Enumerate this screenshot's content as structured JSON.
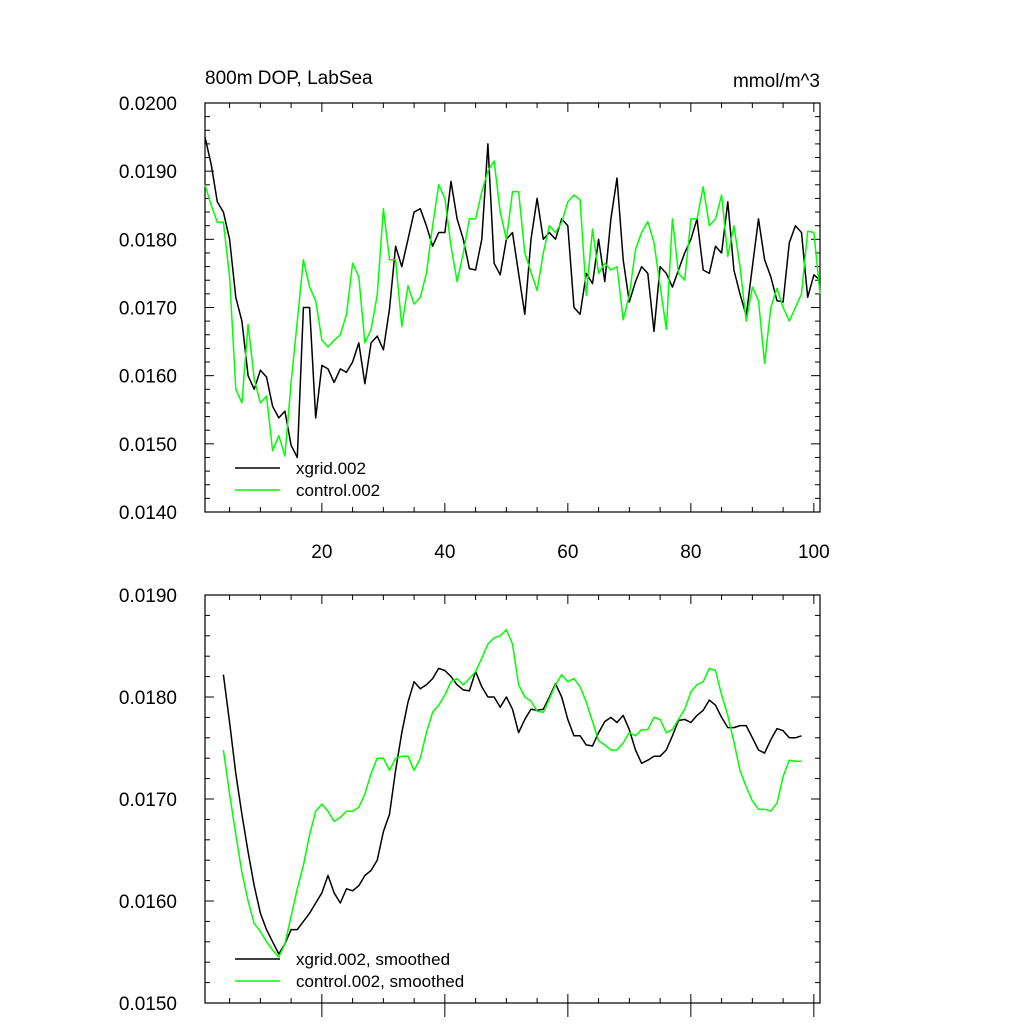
{
  "chart_data": [
    {
      "type": "line",
      "title": "800m DOP, LabSea",
      "units": "mmol/m^3",
      "xlabel": "",
      "ylabel": "",
      "xlim": [
        1,
        101
      ],
      "ylim": [
        0.014,
        0.02
      ],
      "yticks": [
        "0.0140",
        "0.0150",
        "0.0160",
        "0.0170",
        "0.0180",
        "0.0190",
        "0.0200"
      ],
      "xticks": [
        "20",
        "40",
        "60",
        "80",
        "100"
      ],
      "legend_position": "bottom-left",
      "grid": false,
      "series": [
        {
          "name": "xgrid.002",
          "color": "#000000",
          "x": [
            1,
            2,
            3,
            4,
            5,
            6,
            7,
            8,
            9,
            10,
            11,
            12,
            13,
            14,
            15,
            16,
            17,
            18,
            19,
            20,
            21,
            22,
            23,
            24,
            25,
            26,
            27,
            28,
            29,
            30,
            31,
            32,
            33,
            34,
            35,
            36,
            37,
            38,
            39,
            40,
            41,
            42,
            43,
            44,
            45,
            46,
            47,
            48,
            49,
            50,
            51,
            52,
            53,
            54,
            55,
            56,
            57,
            58,
            59,
            60,
            61,
            62,
            63,
            64,
            65,
            66,
            67,
            68,
            69,
            70,
            71,
            72,
            73,
            74,
            75,
            76,
            77,
            78,
            79,
            80,
            81,
            82,
            83,
            84,
            85,
            86,
            87,
            88,
            89,
            90,
            91,
            92,
            93,
            94,
            95,
            96,
            97,
            98,
            99,
            100,
            101
          ],
          "values": [
            0.0195,
            0.0191,
            0.01855,
            0.0184,
            0.018,
            0.01715,
            0.0168,
            0.016,
            0.0158,
            0.01608,
            0.01598,
            0.01555,
            0.01538,
            0.01548,
            0.01498,
            0.0148,
            0.017,
            0.017,
            0.01538,
            0.01615,
            0.0161,
            0.0159,
            0.0161,
            0.01605,
            0.0162,
            0.01648,
            0.01588,
            0.01648,
            0.01658,
            0.01638,
            0.01698,
            0.0179,
            0.0176,
            0.018,
            0.0184,
            0.01845,
            0.0182,
            0.0179,
            0.0181,
            0.0181,
            0.01885,
            0.0183,
            0.018,
            0.01757,
            0.01755,
            0.018,
            0.0194,
            0.01765,
            0.01748,
            0.018,
            0.0181,
            0.0175,
            0.0169,
            0.018,
            0.0186,
            0.018,
            0.0181,
            0.018,
            0.0183,
            0.0182,
            0.017,
            0.0169,
            0.0175,
            0.01735,
            0.018,
            0.01738,
            0.0183,
            0.0189,
            0.0177,
            0.01708,
            0.01738,
            0.0176,
            0.0175,
            0.01665,
            0.0176,
            0.0175,
            0.0173,
            0.01755,
            0.0178,
            0.018,
            0.0183,
            0.01755,
            0.0175,
            0.0179,
            0.0178,
            0.01855,
            0.01755,
            0.0172,
            0.01688,
            0.0176,
            0.0183,
            0.0177,
            0.01745,
            0.0171,
            0.01708,
            0.01795,
            0.0182,
            0.0181,
            0.01715,
            0.01748,
            0.0174
          ]
        },
        {
          "name": "control.002",
          "color": "#00ff00",
          "x": [
            1,
            2,
            3,
            4,
            5,
            6,
            7,
            8,
            9,
            10,
            11,
            12,
            13,
            14,
            15,
            16,
            17,
            18,
            19,
            20,
            21,
            22,
            23,
            24,
            25,
            26,
            27,
            28,
            29,
            30,
            31,
            32,
            33,
            34,
            35,
            36,
            37,
            38,
            39,
            40,
            41,
            42,
            43,
            44,
            45,
            46,
            47,
            48,
            49,
            50,
            51,
            52,
            53,
            54,
            55,
            56,
            57,
            58,
            59,
            60,
            61,
            62,
            63,
            64,
            65,
            66,
            67,
            68,
            69,
            70,
            71,
            72,
            73,
            74,
            75,
            76,
            77,
            78,
            79,
            80,
            81,
            82,
            83,
            84,
            85,
            86,
            87,
            88,
            89,
            90,
            91,
            92,
            93,
            94,
            95,
            96,
            97,
            98,
            99,
            100,
            101
          ],
          "values": [
            0.0188,
            0.0185,
            0.01825,
            0.01825,
            0.01745,
            0.0158,
            0.0156,
            0.01675,
            0.01595,
            0.0156,
            0.0157,
            0.0149,
            0.01512,
            0.01482,
            0.0159,
            0.0168,
            0.0177,
            0.0173,
            0.0171,
            0.01652,
            0.01642,
            0.01652,
            0.0166,
            0.0169,
            0.01765,
            0.01745,
            0.01648,
            0.01668,
            0.01718,
            0.01845,
            0.0177,
            0.0177,
            0.01672,
            0.01732,
            0.01705,
            0.01715,
            0.0175,
            0.0182,
            0.0188,
            0.0186,
            0.0179,
            0.01738,
            0.0178,
            0.0183,
            0.0183,
            0.0187,
            0.019,
            0.01915,
            0.0184,
            0.018,
            0.0187,
            0.0187,
            0.0178,
            0.01752,
            0.01725,
            0.0178,
            0.0182,
            0.0181,
            0.01825,
            0.01855,
            0.01865,
            0.01858,
            0.01718,
            0.01815,
            0.0175,
            0.01765,
            0.01755,
            0.0176,
            0.01682,
            0.01718,
            0.01785,
            0.0181,
            0.01826,
            0.01795,
            0.01732,
            0.01668,
            0.0183,
            0.0175,
            0.0174,
            0.0183,
            0.0183,
            0.01877,
            0.0182,
            0.0183,
            0.01865,
            0.01775,
            0.0182,
            0.0176,
            0.0168,
            0.0173,
            0.0171,
            0.01618,
            0.017,
            0.01728,
            0.017,
            0.0168,
            0.017,
            0.0172,
            0.01812,
            0.0181,
            0.0172
          ]
        }
      ]
    },
    {
      "type": "line",
      "title": "",
      "xlabel": "",
      "ylabel": "",
      "xlim": [
        1,
        101
      ],
      "ylim": [
        0.015,
        0.019
      ],
      "yticks": [
        "0.0150",
        "0.0160",
        "0.0170",
        "0.0180",
        "0.0190"
      ],
      "xticks": [],
      "legend_position": "bottom-left",
      "grid": false,
      "series": [
        {
          "name": "xgrid.002, smoothed",
          "color": "#000000",
          "x": [
            4,
            5,
            6,
            7,
            8,
            9,
            10,
            11,
            12,
            13,
            14,
            15,
            16,
            17,
            18,
            19,
            20,
            21,
            22,
            23,
            24,
            25,
            26,
            27,
            28,
            29,
            30,
            31,
            32,
            33,
            34,
            35,
            36,
            37,
            38,
            39,
            40,
            41,
            42,
            43,
            44,
            45,
            46,
            47,
            48,
            49,
            50,
            51,
            52,
            53,
            54,
            55,
            56,
            57,
            58,
            59,
            60,
            61,
            62,
            63,
            64,
            65,
            66,
            67,
            68,
            69,
            70,
            71,
            72,
            73,
            74,
            75,
            76,
            77,
            78,
            79,
            80,
            81,
            82,
            83,
            84,
            85,
            86,
            87,
            88,
            89,
            90,
            91,
            92,
            93,
            94,
            95,
            96,
            97,
            98
          ],
          "values": [
            0.01822,
            0.01775,
            0.01725,
            0.01685,
            0.01648,
            0.01615,
            0.01588,
            0.01572,
            0.0156,
            0.01548,
            0.01558,
            0.01572,
            0.01572,
            0.0158,
            0.01588,
            0.01598,
            0.01608,
            0.01625,
            0.01608,
            0.01598,
            0.01612,
            0.0161,
            0.01615,
            0.01625,
            0.0163,
            0.0164,
            0.01668,
            0.01685,
            0.01728,
            0.01765,
            0.01795,
            0.01815,
            0.01808,
            0.01812,
            0.01818,
            0.01828,
            0.01826,
            0.0182,
            0.01812,
            0.01807,
            0.01806,
            0.01825,
            0.0181,
            0.018,
            0.018,
            0.0179,
            0.018,
            0.01788,
            0.01765,
            0.01778,
            0.01788,
            0.01787,
            0.01788,
            0.018,
            0.01813,
            0.018,
            0.01778,
            0.01762,
            0.01762,
            0.01753,
            0.01752,
            0.01765,
            0.01776,
            0.0178,
            0.01775,
            0.01782,
            0.01768,
            0.01748,
            0.01735,
            0.01738,
            0.01742,
            0.01742,
            0.01748,
            0.01762,
            0.01777,
            0.01778,
            0.01775,
            0.01782,
            0.01787,
            0.01797,
            0.01792,
            0.0178,
            0.0177,
            0.0177,
            0.01772,
            0.01772,
            0.0176,
            0.01748,
            0.01745,
            0.01758,
            0.01769,
            0.01767,
            0.0176,
            0.0176,
            0.01762
          ]
        },
        {
          "name": "control.002, smoothed",
          "color": "#00ff00",
          "x": [
            4,
            5,
            6,
            7,
            8,
            9,
            10,
            11,
            12,
            13,
            14,
            15,
            16,
            17,
            18,
            19,
            20,
            21,
            22,
            23,
            24,
            25,
            26,
            27,
            28,
            29,
            30,
            31,
            32,
            33,
            34,
            35,
            36,
            37,
            38,
            39,
            40,
            41,
            42,
            43,
            44,
            45,
            46,
            47,
            48,
            49,
            50,
            51,
            52,
            53,
            54,
            55,
            56,
            57,
            58,
            59,
            60,
            61,
            62,
            63,
            64,
            65,
            66,
            67,
            68,
            69,
            70,
            71,
            72,
            73,
            74,
            75,
            76,
            77,
            78,
            79,
            80,
            81,
            82,
            83,
            84,
            85,
            86,
            87,
            88,
            89,
            90,
            91,
            92,
            93,
            94,
            95,
            96,
            97,
            98
          ],
          "values": [
            0.01748,
            0.01705,
            0.01665,
            0.01628,
            0.016,
            0.01578,
            0.0157,
            0.0156,
            0.01552,
            0.01545,
            0.01558,
            0.01585,
            0.01612,
            0.01635,
            0.01665,
            0.01688,
            0.01695,
            0.01688,
            0.01678,
            0.01682,
            0.01688,
            0.01688,
            0.01692,
            0.01705,
            0.01725,
            0.0174,
            0.0174,
            0.01728,
            0.0174,
            0.01742,
            0.01742,
            0.01728,
            0.0174,
            0.01765,
            0.01785,
            0.01792,
            0.01802,
            0.01815,
            0.01818,
            0.01812,
            0.01818,
            0.01825,
            0.01838,
            0.01852,
            0.01858,
            0.0186,
            0.01866,
            0.01852,
            0.01812,
            0.018,
            0.01796,
            0.01786,
            0.01785,
            0.01798,
            0.01812,
            0.01822,
            0.01815,
            0.01818,
            0.0181,
            0.01795,
            0.01776,
            0.01757,
            0.01753,
            0.01748,
            0.01748,
            0.01755,
            0.01765,
            0.01762,
            0.01768,
            0.01768,
            0.0178,
            0.01778,
            0.01765,
            0.01768,
            0.01778,
            0.01788,
            0.01805,
            0.01812,
            0.01815,
            0.01828,
            0.01826,
            0.01802,
            0.01782,
            0.01756,
            0.01728,
            0.01712,
            0.01698,
            0.0169,
            0.0169,
            0.01688,
            0.01696,
            0.01722,
            0.01738,
            0.01737,
            0.01737
          ]
        }
      ]
    }
  ]
}
